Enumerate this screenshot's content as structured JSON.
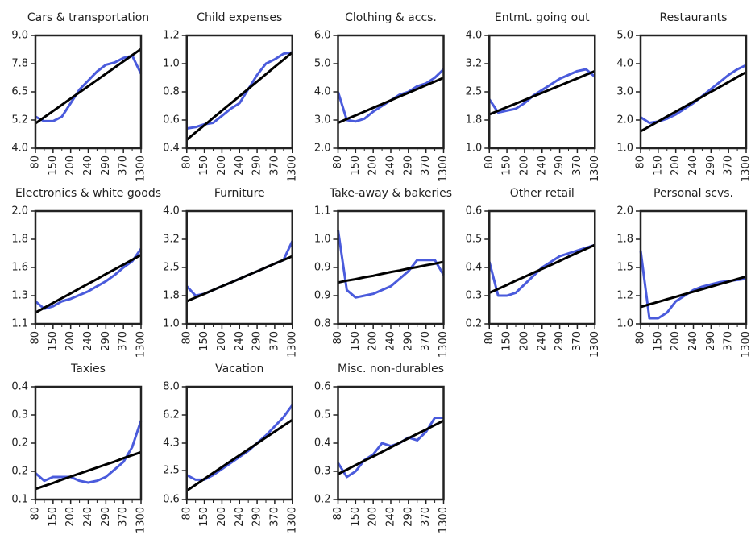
{
  "chart_data": [
    {
      "type": "line",
      "title": "Cars & transportation",
      "categories": [
        "80",
        null,
        "150",
        null,
        "200",
        null,
        "240",
        null,
        "290",
        null,
        "370",
        null,
        "1300"
      ],
      "series": [
        {
          "color": "#4a5bdc",
          "values": [
            5.4,
            5.2,
            5.2,
            5.4,
            6.0,
            6.6,
            7.0,
            7.4,
            7.7,
            7.8,
            8.0,
            8.1,
            7.3
          ]
        },
        {
          "color": "#000000",
          "values": [
            5.1,
            5.375,
            5.65,
            5.925,
            6.2,
            6.475,
            6.75,
            7.025,
            7.3,
            7.575,
            7.85,
            8.125,
            8.4
          ]
        }
      ],
      "ylim": [
        4,
        9
      ],
      "yticks": [
        {
          "value": 4,
          "label": "4.0"
        },
        {
          "value": 5.25,
          "label": "5.2"
        },
        6.5,
        {
          "value": 7.75,
          "label": "7.8"
        },
        {
          "value": 9,
          "label": "9.0"
        }
      ]
    },
    {
      "type": "line",
      "title": "Child expenses",
      "categories": [
        "80",
        null,
        "150",
        null,
        "200",
        null,
        "240",
        null,
        "290",
        null,
        "370",
        null,
        "1300"
      ],
      "series": [
        {
          "color": "#4a5bdc",
          "values": [
            0.54,
            0.55,
            0.57,
            0.58,
            0.63,
            0.68,
            0.72,
            0.82,
            0.92,
            1.0,
            1.03,
            1.07,
            1.08
          ]
        },
        {
          "color": "#000000",
          "values": [
            0.46,
            0.512,
            0.563,
            0.615,
            0.667,
            0.718,
            0.77,
            0.822,
            0.873,
            0.925,
            0.977,
            1.028,
            1.08
          ]
        }
      ],
      "ylim": [
        0.4,
        1.2
      ],
      "yticks": [
        0.4,
        0.6,
        0.8,
        {
          "value": 1,
          "label": "1.0"
        },
        1.2
      ]
    },
    {
      "type": "line",
      "title": "Clothing & accs.",
      "categories": [
        "80",
        null,
        "150",
        null,
        "200",
        null,
        "240",
        null,
        "290",
        null,
        "370",
        null,
        "1300"
      ],
      "series": [
        {
          "color": "#4a5bdc",
          "values": [
            4.0,
            3.0,
            2.95,
            3.05,
            3.3,
            3.5,
            3.7,
            3.9,
            4.0,
            4.2,
            4.3,
            4.5,
            4.8
          ]
        },
        {
          "color": "#000000",
          "values": [
            2.9,
            3.033,
            3.167,
            3.3,
            3.433,
            3.567,
            3.7,
            3.833,
            3.967,
            4.1,
            4.233,
            4.367,
            4.5
          ]
        }
      ],
      "ylim": [
        2,
        6
      ],
      "yticks": [
        {
          "value": 2,
          "label": "2.0"
        },
        {
          "value": 3,
          "label": "3.0"
        },
        {
          "value": 4,
          "label": "4.0"
        },
        {
          "value": 5,
          "label": "5.0"
        },
        {
          "value": 6,
          "label": "6.0"
        }
      ]
    },
    {
      "type": "line",
      "title": "Entmt. going out",
      "categories": [
        "80",
        null,
        "150",
        null,
        "200",
        null,
        "240",
        null,
        "290",
        null,
        "370",
        null,
        "1300"
      ],
      "series": [
        {
          "color": "#4a5bdc",
          "values": [
            2.3,
            1.95,
            2.0,
            2.05,
            2.2,
            2.4,
            2.55,
            2.7,
            2.85,
            2.95,
            3.05,
            3.1,
            2.9
          ]
        },
        {
          "color": "#000000",
          "values": [
            1.9,
            1.996,
            2.092,
            2.188,
            2.283,
            2.379,
            2.475,
            2.571,
            2.667,
            2.763,
            2.858,
            2.954,
            3.05
          ]
        }
      ],
      "ylim": [
        1,
        4
      ],
      "yticks": [
        {
          "value": 1,
          "label": "1.0"
        },
        {
          "value": 1.75,
          "label": "1.8"
        },
        2.5,
        {
          "value": 3.25,
          "label": "3.2"
        },
        {
          "value": 4,
          "label": "4.0"
        }
      ]
    },
    {
      "type": "line",
      "title": "Restaurants",
      "categories": [
        "80",
        null,
        "150",
        null,
        "200",
        null,
        "240",
        null,
        "290",
        null,
        "370",
        null,
        "1300"
      ],
      "series": [
        {
          "color": "#4a5bdc",
          "values": [
            2.1,
            1.9,
            1.95,
            2.05,
            2.2,
            2.4,
            2.6,
            2.85,
            3.1,
            3.35,
            3.6,
            3.8,
            3.95
          ]
        },
        {
          "color": "#000000",
          "values": [
            1.6,
            1.775,
            1.95,
            2.125,
            2.3,
            2.475,
            2.65,
            2.825,
            3.0,
            3.175,
            3.35,
            3.525,
            3.7
          ]
        }
      ],
      "ylim": [
        1,
        5
      ],
      "yticks": [
        {
          "value": 1,
          "label": "1.0"
        },
        {
          "value": 2,
          "label": "2.0"
        },
        {
          "value": 3,
          "label": "3.0"
        },
        {
          "value": 4,
          "label": "4.0"
        },
        {
          "value": 5,
          "label": "5.0"
        }
      ]
    },
    {
      "type": "line",
      "title": "Electronics & white goods",
      "categories": [
        "80",
        null,
        "150",
        null,
        "200",
        null,
        "240",
        null,
        "290",
        null,
        "370",
        null,
        "1300"
      ],
      "series": [
        {
          "color": "#4a5bdc",
          "values": [
            1.28,
            1.22,
            1.24,
            1.28,
            1.3,
            1.33,
            1.36,
            1.4,
            1.44,
            1.49,
            1.55,
            1.6,
            1.7
          ]
        },
        {
          "color": "#000000",
          "values": [
            1.19,
            1.228,
            1.267,
            1.305,
            1.343,
            1.382,
            1.42,
            1.458,
            1.497,
            1.535,
            1.573,
            1.612,
            1.65
          ]
        }
      ],
      "ylim": [
        1.1,
        2
      ],
      "yticks": [
        1.1,
        {
          "value": 1.325,
          "label": "1.3"
        },
        {
          "value": 1.55,
          "label": "1.6"
        },
        {
          "value": 1.775,
          "label": "1.8"
        },
        {
          "value": 2,
          "label": "2.0"
        }
      ]
    },
    {
      "type": "line",
      "title": "Furniture",
      "categories": [
        "80",
        null,
        "150",
        null,
        "200",
        null,
        "240",
        null,
        "290",
        null,
        "370",
        null,
        "1300"
      ],
      "series": [
        {
          "color": "#4a5bdc",
          "values": [
            2.0,
            1.75,
            1.8,
            1.9,
            2.0,
            2.1,
            2.2,
            2.3,
            2.4,
            2.5,
            2.6,
            2.7,
            3.2
          ]
        },
        {
          "color": "#000000",
          "values": [
            1.6,
            1.7,
            1.8,
            1.9,
            2.0,
            2.1,
            2.2,
            2.3,
            2.4,
            2.5,
            2.6,
            2.7,
            2.8
          ]
        }
      ],
      "ylim": [
        1,
        4
      ],
      "yticks": [
        {
          "value": 1,
          "label": "1.0"
        },
        {
          "value": 1.75,
          "label": "1.8"
        },
        2.5,
        {
          "value": 3.25,
          "label": "3.2"
        },
        {
          "value": 4,
          "label": "4.0"
        }
      ]
    },
    {
      "type": "line",
      "title": "Take-away & bakeries",
      "categories": [
        "80",
        null,
        "150",
        null,
        "200",
        null,
        "240",
        null,
        "290",
        null,
        "370",
        null,
        "1300"
      ],
      "series": [
        {
          "color": "#4a5bdc",
          "values": [
            1.05,
            0.89,
            0.87,
            0.875,
            0.88,
            0.89,
            0.9,
            0.92,
            0.94,
            0.97,
            0.97,
            0.97,
            0.93
          ]
        },
        {
          "color": "#000000",
          "values": [
            0.91,
            0.915,
            0.919,
            0.924,
            0.928,
            0.933,
            0.938,
            0.942,
            0.947,
            0.951,
            0.956,
            0.96,
            0.965
          ]
        }
      ],
      "ylim": [
        0.8,
        1.1
      ],
      "yticks": [
        0.8,
        {
          "value": 0.875,
          "label": "0.9"
        },
        {
          "value": 0.95,
          "label": "0.9"
        },
        {
          "value": 1.025,
          "label": "1.0"
        },
        1.1
      ]
    },
    {
      "type": "line",
      "title": "Other retail",
      "categories": [
        "80",
        null,
        "150",
        null,
        "200",
        null,
        "240",
        null,
        "290",
        null,
        "370",
        null,
        "1300"
      ],
      "series": [
        {
          "color": "#4a5bdc",
          "values": [
            0.42,
            0.3,
            0.3,
            0.31,
            0.34,
            0.37,
            0.4,
            0.42,
            0.44,
            0.45,
            0.46,
            0.47,
            0.48
          ]
        },
        {
          "color": "#000000",
          "values": [
            0.31,
            0.324,
            0.338,
            0.353,
            0.367,
            0.381,
            0.395,
            0.409,
            0.423,
            0.438,
            0.452,
            0.466,
            0.48
          ]
        }
      ],
      "ylim": [
        0.2,
        0.6
      ],
      "yticks": [
        0.2,
        0.3,
        0.4,
        0.5,
        0.6
      ]
    },
    {
      "type": "line",
      "title": "Personal scvs.",
      "categories": [
        "80",
        null,
        "150",
        null,
        "200",
        null,
        "240",
        null,
        "290",
        null,
        "370",
        null,
        "1300"
      ],
      "series": [
        {
          "color": "#4a5bdc",
          "values": [
            1.65,
            1.05,
            1.05,
            1.1,
            1.2,
            1.25,
            1.3,
            1.33,
            1.35,
            1.37,
            1.38,
            1.39,
            1.4
          ]
        },
        {
          "color": "#000000",
          "values": [
            1.15,
            1.173,
            1.195,
            1.218,
            1.24,
            1.263,
            1.285,
            1.308,
            1.33,
            1.353,
            1.375,
            1.398,
            1.42
          ]
        }
      ],
      "ylim": [
        1,
        2
      ],
      "yticks": [
        {
          "value": 1,
          "label": "1.0"
        },
        {
          "value": 1.25,
          "label": "1.2"
        },
        1.5,
        {
          "value": 1.75,
          "label": "1.8"
        },
        {
          "value": 2,
          "label": "2.0"
        }
      ]
    },
    {
      "type": "line",
      "title": "Taxies",
      "categories": [
        "80",
        null,
        "150",
        null,
        "200",
        null,
        "240",
        null,
        "290",
        null,
        "370",
        null,
        "1300"
      ],
      "series": [
        {
          "color": "#4a5bdc",
          "values": [
            0.17,
            0.15,
            0.16,
            0.16,
            0.16,
            0.15,
            0.145,
            0.15,
            0.16,
            0.18,
            0.2,
            0.24,
            0.31
          ]
        },
        {
          "color": "#000000",
          "values": [
            0.128,
            0.136,
            0.144,
            0.153,
            0.161,
            0.169,
            0.177,
            0.185,
            0.193,
            0.201,
            0.21,
            0.218,
            0.226
          ]
        }
      ],
      "ylim": [
        0.1,
        0.4
      ],
      "yticks": [
        0.1,
        {
          "value": 0.175,
          "label": "0.2"
        },
        {
          "value": 0.25,
          "label": "0.2"
        },
        {
          "value": 0.325,
          "label": "0.3"
        },
        0.4
      ]
    },
    {
      "type": "line",
      "title": "Vacation",
      "categories": [
        "80",
        null,
        "150",
        null,
        "200",
        null,
        "240",
        null,
        "290",
        null,
        "370",
        null,
        "1300"
      ],
      "series": [
        {
          "color": "#4a5bdc",
          "values": [
            2.2,
            1.9,
            1.9,
            2.2,
            2.6,
            3.0,
            3.4,
            3.8,
            4.3,
            4.8,
            5.4,
            6.0,
            6.8
          ]
        },
        {
          "color": "#000000",
          "values": [
            1.18,
            1.568,
            1.955,
            2.343,
            2.73,
            3.118,
            3.505,
            3.893,
            4.28,
            4.668,
            5.055,
            5.443,
            5.83
          ]
        }
      ],
      "ylim": [
        0.6,
        8
      ],
      "yticks": [
        0.6,
        2.5,
        4.3,
        {
          "value": 6.15,
          "label": "6.2"
        },
        {
          "value": 8,
          "label": "8.0"
        }
      ]
    },
    {
      "type": "line",
      "title": "Misc. non-durables",
      "categories": [
        "80",
        null,
        "150",
        null,
        "200",
        null,
        "240",
        null,
        "290",
        null,
        "370",
        null,
        "1300"
      ],
      "series": [
        {
          "color": "#4a5bdc",
          "values": [
            0.33,
            0.28,
            0.3,
            0.34,
            0.36,
            0.4,
            0.39,
            0.4,
            0.42,
            0.41,
            0.44,
            0.49,
            0.49
          ]
        },
        {
          "color": "#000000",
          "values": [
            0.29,
            0.306,
            0.322,
            0.338,
            0.353,
            0.369,
            0.385,
            0.401,
            0.417,
            0.433,
            0.448,
            0.464,
            0.48
          ]
        }
      ],
      "ylim": [
        0.2,
        0.6
      ],
      "yticks": [
        0.2,
        0.3,
        0.4,
        0.5,
        0.6
      ]
    }
  ]
}
